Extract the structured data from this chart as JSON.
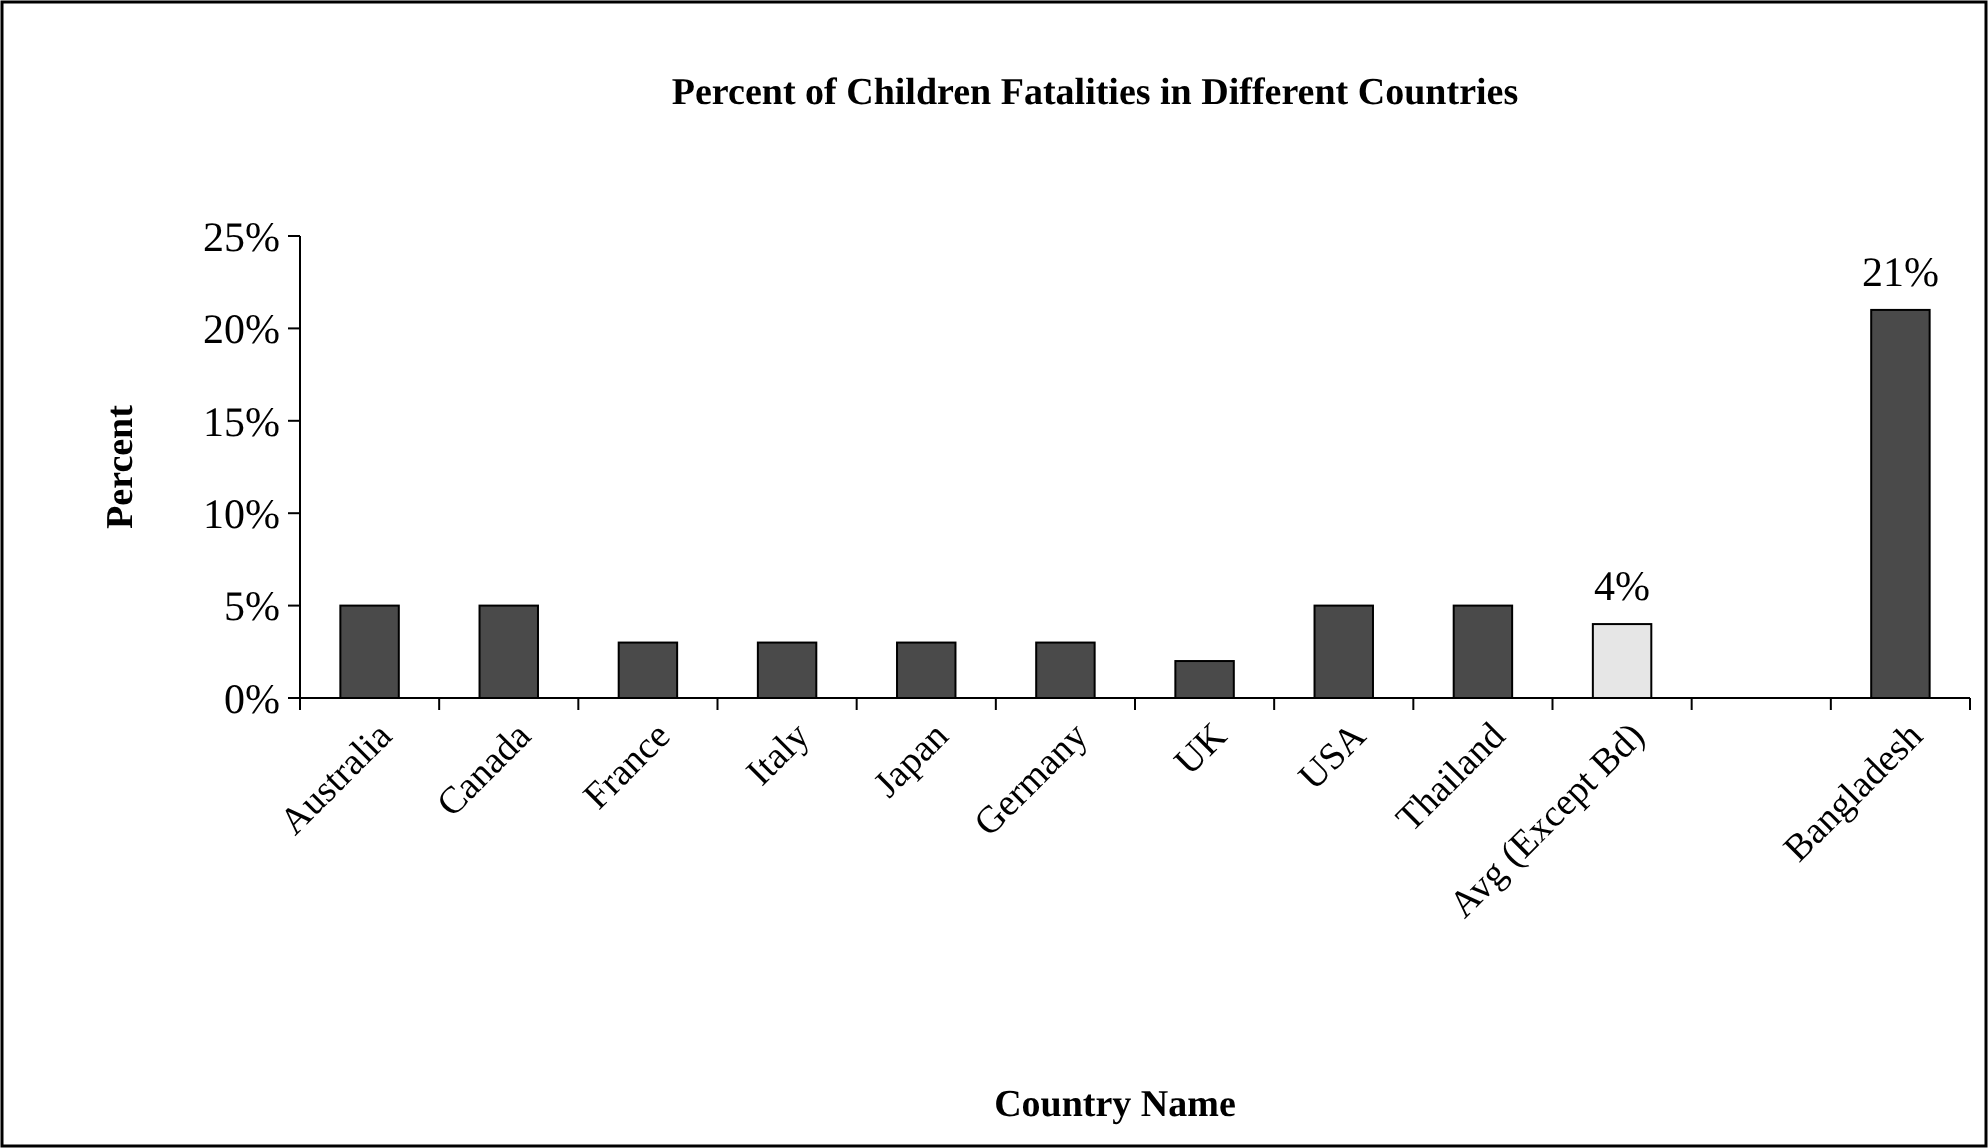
{
  "chart_data": {
    "type": "bar",
    "title": "Percent of Children Fatalities in Different Countries",
    "xlabel": "Country Name",
    "ylabel": "Percent",
    "categories": [
      "Australia",
      "Canada",
      "France",
      "Italy",
      "Japan",
      "Germany",
      "UK",
      "USA",
      "Thailand",
      "Avg (Except Bd)",
      null,
      "Bangladesh"
    ],
    "values": [
      5,
      5,
      3,
      3,
      3,
      3,
      2,
      5,
      5,
      4,
      null,
      21
    ],
    "colors": [
      "#4a4a4a",
      "#4a4a4a",
      "#4a4a4a",
      "#4a4a4a",
      "#4a4a4a",
      "#4a4a4a",
      "#4a4a4a",
      "#4a4a4a",
      "#4a4a4a",
      "#e6e6e6",
      null,
      "#4a4a4a"
    ],
    "value_labels": [
      null,
      null,
      null,
      null,
      null,
      null,
      null,
      null,
      null,
      "4%",
      null,
      "21%"
    ],
    "ylim": [
      0,
      25
    ],
    "yticks": [
      {
        "value": 0,
        "label": "0%"
      },
      {
        "value": 5,
        "label": "5%"
      },
      {
        "value": 10,
        "label": "10%"
      },
      {
        "value": 15,
        "label": "15%"
      },
      {
        "value": 20,
        "label": "20%"
      },
      {
        "value": 25,
        "label": "25%"
      }
    ],
    "grid": false
  }
}
